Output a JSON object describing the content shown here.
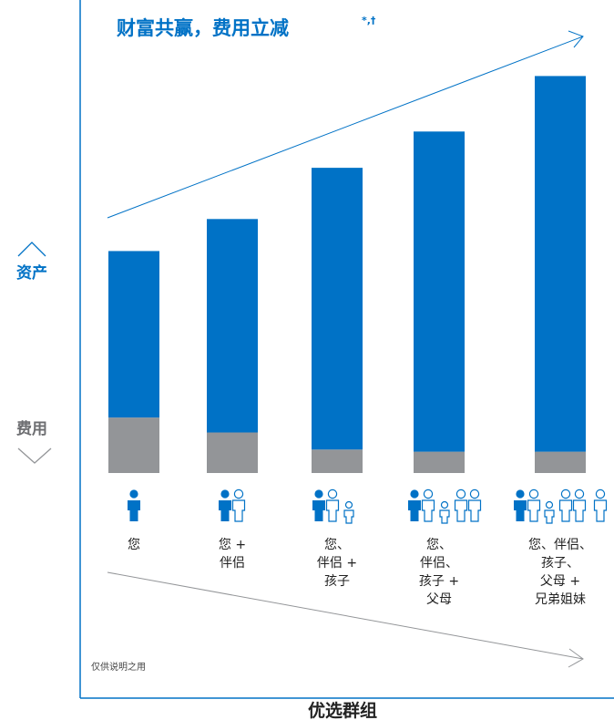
{
  "chart_data": {
    "type": "bar",
    "title": "财富共赢，费用立减",
    "title_sup": "*,†",
    "xlabel": "优选群组",
    "ylabel_top": "资产",
    "ylabel_bottom": "费用",
    "note": "仅供说明之用",
    "categories": [
      [
        "您"
      ],
      [
        "您 +",
        "伴侣"
      ],
      [
        "您、",
        "伴侣 +",
        "孩子"
      ],
      [
        "您、",
        "伴侣、",
        "孩子 +",
        "父母"
      ],
      [
        "您、伴侣、",
        "孩子、",
        "父母 +",
        "兄弟姐妹"
      ]
    ],
    "series": [
      {
        "name": "资产",
        "values": [
          3.9,
          5.0,
          6.6,
          7.5,
          8.8
        ]
      },
      {
        "name": "费用",
        "values": [
          1.3,
          0.95,
          0.55,
          0.5,
          0.5
        ]
      }
    ],
    "colors": {
      "assets": "#0072c6",
      "fees": "#939598",
      "axis": "#0072c6",
      "arrow_bottom": "#939598"
    },
    "ylim": [
      0,
      9.8
    ],
    "icons": [
      "person-icon",
      "person-partner-icon",
      "family-child-icon",
      "family-parents-icon",
      "family-siblings-icon"
    ]
  }
}
